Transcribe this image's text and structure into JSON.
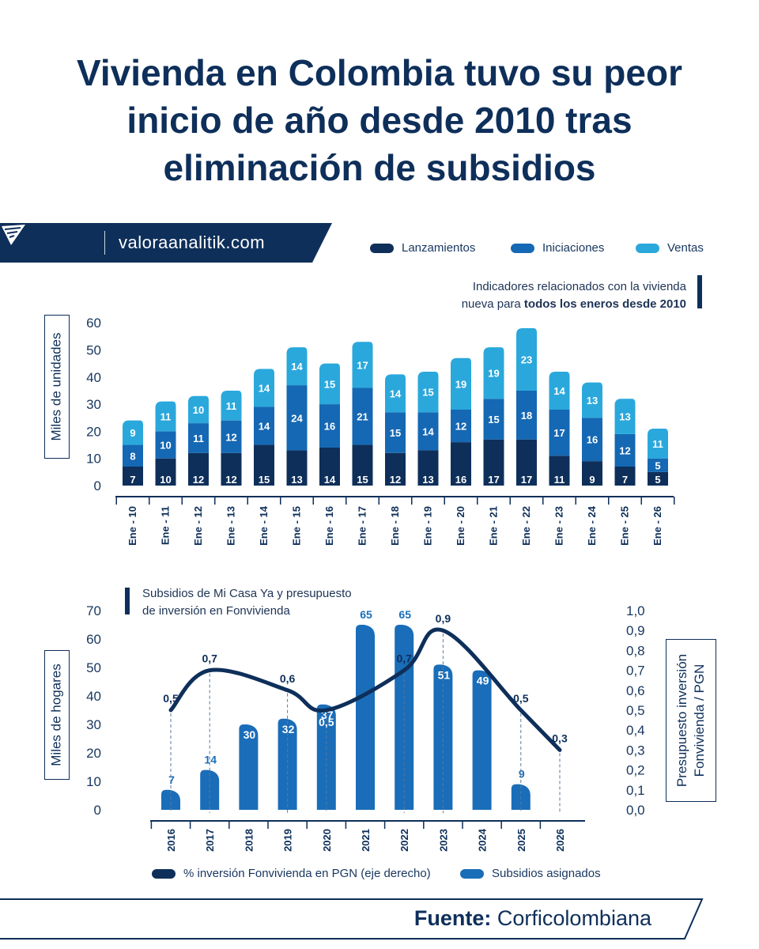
{
  "title": "Vivienda en Colombia tuvo su peor inicio de año desde 2010 tras eliminación de subsidios",
  "brand": {
    "site": "valoraanalitik.com",
    "icon": "valora-logo-icon"
  },
  "chart1": {
    "note_line1": "Indicadores relacionados con la vivienda",
    "note_line2_prefix": "nueva para ",
    "note_line2_bold": "todos los eneros desde 2010"
  },
  "chart2": {
    "note_line1": "Subsidios de Mi Casa Ya y presupuesto",
    "note_line2": "de inversión en Fonvivienda"
  },
  "source": {
    "label": "Fuente:",
    "value": "Corficolombiana"
  },
  "colors": {
    "dark": "#0e2f5a",
    "medium": "#1568b3",
    "light": "#2aa8dc",
    "subsidy": "#1a6db8",
    "text": "#17365f"
  },
  "chart_data": [
    {
      "type": "bar",
      "stacked": true,
      "categories": [
        "Ene - 10",
        "Ene - 11",
        "Ene - 12",
        "Ene - 13",
        "Ene - 14",
        "Ene - 15",
        "Ene - 16",
        "Ene - 17",
        "Ene - 18",
        "Ene - 19",
        "Ene - 20",
        "Ene - 21",
        "Ene - 22",
        "Ene - 23",
        "Ene - 24",
        "Ene - 25",
        "Ene - 26"
      ],
      "series": [
        {
          "name": "Lanzamientos",
          "values": [
            7,
            10,
            12,
            12,
            15,
            13,
            14,
            15,
            12,
            13,
            16,
            17,
            17,
            11,
            9,
            7,
            5
          ]
        },
        {
          "name": "Iniciaciones",
          "values": [
            8,
            10,
            11,
            12,
            14,
            24,
            16,
            21,
            15,
            14,
            12,
            15,
            18,
            17,
            16,
            12,
            5
          ]
        },
        {
          "name": "Ventas",
          "values": [
            9,
            11,
            10,
            11,
            14,
            14,
            15,
            17,
            14,
            15,
            19,
            19,
            23,
            14,
            13,
            13,
            11
          ]
        }
      ],
      "ylabel": "Miles de unidades",
      "yticks": [
        0,
        10,
        20,
        30,
        40,
        50,
        60
      ],
      "ylim": [
        0,
        60
      ],
      "legend_position": "top-right"
    },
    {
      "type": "bar+line",
      "categories": [
        "2016",
        "2017",
        "2018",
        "2019",
        "2020",
        "2021",
        "2022",
        "2023",
        "2024",
        "2025",
        "2026"
      ],
      "series": [
        {
          "name": "Subsidios asignados",
          "type": "bar",
          "axis": "left",
          "values": [
            7,
            14,
            30,
            32,
            37,
            65,
            65,
            51,
            49,
            9,
            null
          ]
        },
        {
          "name": "% inversión Fonvivienda en PGN (eje derecho)",
          "type": "line",
          "axis": "right",
          "values": [
            0.5,
            0.7,
            null,
            0.6,
            0.5,
            null,
            0.7,
            0.9,
            null,
            0.5,
            0.3
          ]
        }
      ],
      "bar_labels": [
        "7",
        "14",
        "30",
        "32",
        "37",
        "65",
        "65",
        "51",
        "49",
        "9",
        ""
      ],
      "line_labels": [
        "0,5",
        "0,7",
        "",
        "0,6",
        "0,5",
        "",
        "0,7",
        "0,9",
        "",
        "0,5",
        "0,3"
      ],
      "ylabel": "Miles de hogares",
      "ylabel_right": "Presupuesto inversión Fonvivienda / PGN",
      "yticks": [
        0,
        10,
        20,
        30,
        40,
        50,
        60,
        70
      ],
      "ylim": [
        0,
        70
      ],
      "yticks_right": [
        "0,0",
        "0,1",
        "0,2",
        "0,3",
        "0,4",
        "0,5",
        "0,6",
        "0,7",
        "0,8",
        "0,9",
        "1,0"
      ],
      "ylim_right": [
        0,
        1.0
      ],
      "legend_position": "bottom"
    }
  ]
}
